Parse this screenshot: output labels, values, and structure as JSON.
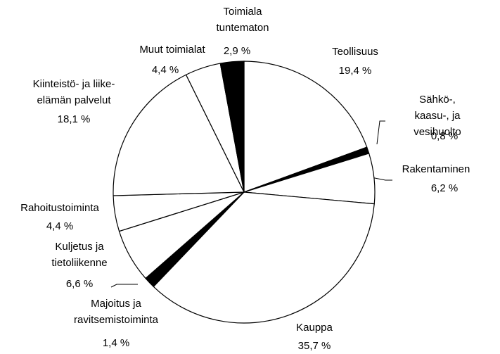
{
  "chart_data": {
    "type": "pie",
    "categories": [
      "Teollisuus",
      "Sähkö-, kaasu-, ja\nvesihuolto",
      "Rakentaminen",
      "Kauppa",
      "Majoitus ja\nravitsemistoiminta",
      "Kuljetus ja\ntietoliikenne",
      "Rahoitustoiminta",
      "Kiinteistö- ja liike-\nelämän palvelut",
      "Muut toimialat",
      "Toimiala\ntuntematon"
    ],
    "values": [
      19.4,
      0.8,
      6.2,
      35.7,
      1.4,
      6.6,
      4.4,
      18.1,
      4.4,
      2.9
    ],
    "value_labels": [
      "19,4 %",
      "0,8 %",
      "6,2 %",
      "35,7 %",
      "1,4 %",
      "6,6 %",
      "4,4 %",
      "18,1 %",
      "4,4 %",
      "2,9 %"
    ],
    "colors": [
      "#ffffff",
      "#000000",
      "#ffffff",
      "#ffffff",
      "#000000",
      "#ffffff",
      "#ffffff",
      "#ffffff",
      "#ffffff",
      "#000000"
    ]
  }
}
